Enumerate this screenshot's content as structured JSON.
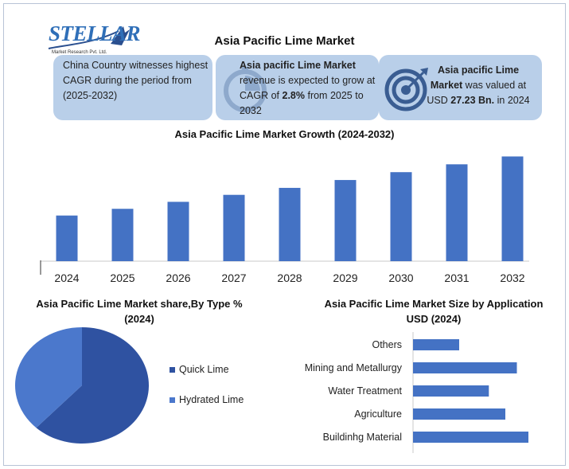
{
  "logo": {
    "name": "STELLAR",
    "subtitle": "Market Research Pvt. Ltd."
  },
  "title": "Asia Pacific Lime Market",
  "info_boxes": [
    {
      "text": "China Country witnesses highest CAGR during the period from (2025-2032)"
    },
    {
      "bold_lead": "Asia pacific Lime Market",
      "pre": " revenue is expected to grow at CAGR of ",
      "bold_value": "2.8%",
      "post": " from 2025 to 2032",
      "icon": "clock-icon"
    },
    {
      "bold_lead": "Asia pacific Lime Market",
      "pre": " was valued at USD ",
      "bold_value": "27.23 Bn.",
      "post": " in 2024",
      "icon": "target-icon"
    }
  ],
  "colors": {
    "bar": "#4472c4",
    "pie_quick_lime": "#2f52a1",
    "pie_hydrated_lime": "#4b78cc",
    "box_bg": "#b9cfe9",
    "logo": "#2f6fb8"
  },
  "chart_data": [
    {
      "type": "bar",
      "title": "Asia Pacific Lime Market Growth (2024-2032)",
      "categories": [
        "2024",
        "2025",
        "2026",
        "2027",
        "2028",
        "2029",
        "2030",
        "2031",
        "2032"
      ],
      "values": [
        27.23,
        28.0,
        28.8,
        29.6,
        30.4,
        31.3,
        32.2,
        33.1,
        34.0
      ],
      "ylim": [
        22,
        34.5
      ],
      "xlabel": "",
      "ylabel": "",
      "grid": false
    },
    {
      "type": "pie",
      "title": "Asia Pacific Lime Market share,By Type %(2024)",
      "labels": [
        "Quick Lime",
        "Hydrated Lime"
      ],
      "values": [
        62,
        38
      ],
      "legend": "right"
    },
    {
      "type": "bar",
      "orientation": "horizontal",
      "title": "Asia Pacific Lime Market Size by Application USD (2024)",
      "categories": [
        "Others",
        "Mining and Metallurgy",
        "Water Treatment",
        "Agriculture",
        "Buildinhg Material"
      ],
      "values": [
        2.8,
        6.3,
        4.6,
        5.6,
        7.0
      ],
      "xlim": [
        0,
        7.0
      ],
      "grid": false
    }
  ]
}
